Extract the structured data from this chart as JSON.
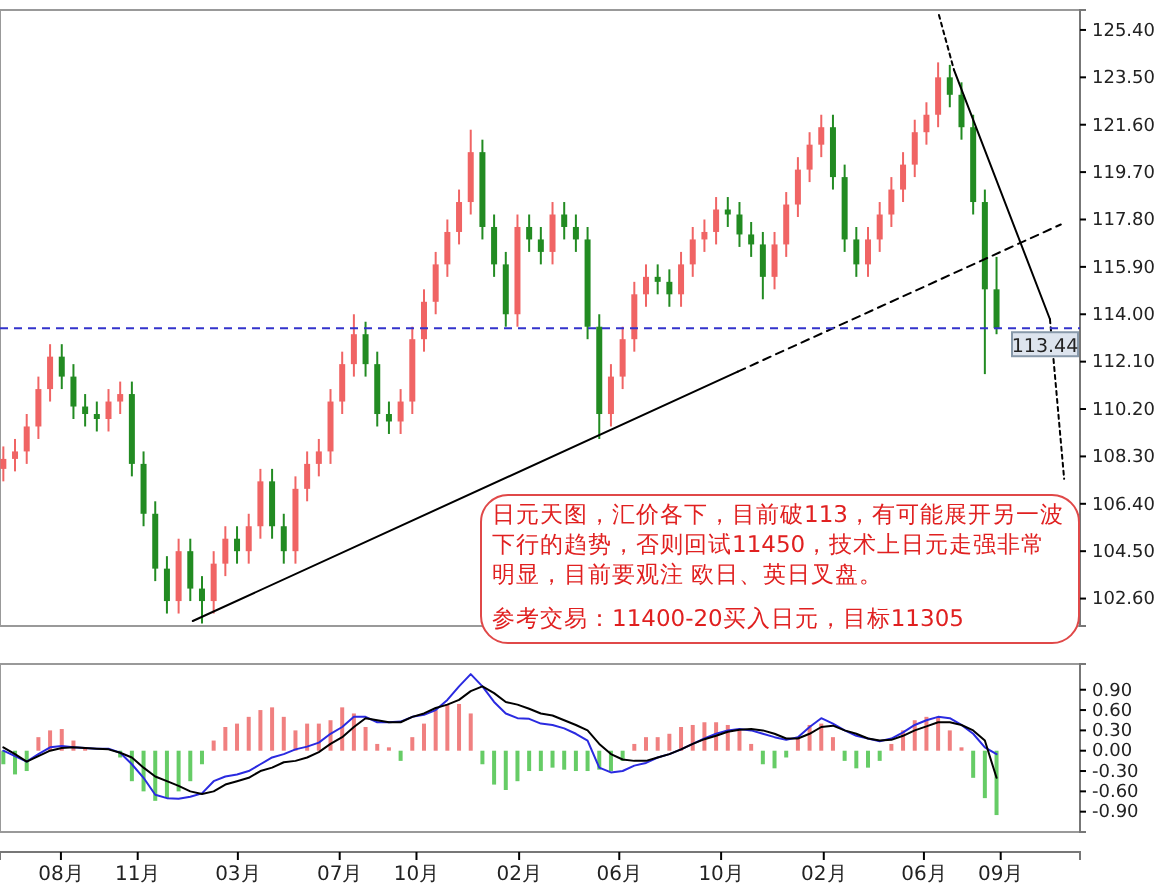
{
  "chart_data": [
    {
      "type": "candlestick",
      "x": [
        "2004-05-24",
        "2004-06-07",
        "2004-06-21",
        "2004-07-05",
        "2004-07-19",
        "2004-08-02",
        "2004-08-16",
        "2004-08-30",
        "2004-09-13",
        "2004-09-27",
        "2004-10-11",
        "2004-10-25",
        "2004-11-08",
        "2004-11-22",
        "2004-12-06",
        "2004-12-20",
        "2005-01-03",
        "2005-01-17",
        "2005-01-31",
        "2005-02-14",
        "2005-02-28",
        "2005-03-14",
        "2005-03-28",
        "2005-04-11",
        "2005-04-25",
        "2005-05-09",
        "2005-05-23",
        "2005-06-06",
        "2005-06-20",
        "2005-07-04",
        "2005-07-18",
        "2005-08-01",
        "2005-08-15",
        "2005-08-29",
        "2005-09-12",
        "2005-09-26",
        "2005-10-10",
        "2005-10-24",
        "2005-11-07",
        "2005-11-21",
        "2005-12-05",
        "2005-12-19",
        "2006-01-02",
        "2006-01-16",
        "2006-01-30",
        "2006-02-13",
        "2006-02-27",
        "2006-03-13",
        "2006-03-27",
        "2006-04-10",
        "2006-04-24",
        "2006-05-08",
        "2006-05-22",
        "2006-06-05",
        "2006-06-19",
        "2006-07-03",
        "2006-07-17",
        "2006-07-31",
        "2006-08-14",
        "2006-08-28",
        "2006-09-11",
        "2006-09-25",
        "2006-10-09",
        "2006-10-23",
        "2006-11-06",
        "2006-11-20",
        "2006-12-04",
        "2006-12-18",
        "2007-01-01",
        "2007-01-15",
        "2007-01-29",
        "2007-02-12",
        "2007-02-26",
        "2007-03-12",
        "2007-03-26",
        "2007-04-09",
        "2007-04-23",
        "2007-05-07",
        "2007-05-21",
        "2007-06-04",
        "2007-06-18",
        "2007-07-02",
        "2007-07-16",
        "2007-07-30",
        "2007-08-13",
        "2007-08-27"
      ],
      "ohlc": [
        [
          107.8,
          108.7,
          107.3,
          108.2
        ],
        [
          108.2,
          109.0,
          107.7,
          108.5
        ],
        [
          108.5,
          110.0,
          108.0,
          109.5
        ],
        [
          109.5,
          111.5,
          109.0,
          111
        ],
        [
          111,
          112.8,
          110.5,
          112.3
        ],
        [
          112.3,
          112.8,
          111.0,
          111.5
        ],
        [
          111.5,
          112.0,
          109.8,
          110.3
        ],
        [
          110.3,
          110.8,
          109.5,
          110
        ],
        [
          110,
          110.5,
          109.3,
          109.8
        ],
        [
          109.8,
          111.0,
          109.3,
          110.5
        ],
        [
          110.5,
          111.3,
          110.0,
          110.8
        ],
        [
          110.8,
          111.3,
          107.5,
          108
        ],
        [
          108,
          108.5,
          105.5,
          106
        ],
        [
          106,
          106.5,
          103.3,
          103.8
        ],
        [
          103.8,
          104.3,
          102.0,
          102.5
        ],
        [
          102.5,
          105.0,
          102.0,
          104.5
        ],
        [
          104.5,
          105.0,
          102.5,
          103
        ],
        [
          103,
          103.5,
          101.6,
          102.5
        ],
        [
          102.5,
          104.5,
          102.0,
          104
        ],
        [
          104,
          105.5,
          103.5,
          105
        ],
        [
          105,
          105.5,
          104.0,
          104.5
        ],
        [
          104.5,
          106.0,
          104.0,
          105.5
        ],
        [
          105.5,
          107.8,
          105.0,
          107.3
        ],
        [
          107.3,
          107.8,
          105.0,
          105.5
        ],
        [
          105.5,
          106.0,
          104.0,
          104.5
        ],
        [
          104.5,
          107.5,
          104.0,
          107
        ],
        [
          107,
          108.5,
          106.5,
          108
        ],
        [
          108,
          109.0,
          107.5,
          108.5
        ],
        [
          108.5,
          111.0,
          108.0,
          110.5
        ],
        [
          110.5,
          112.5,
          110.0,
          112
        ],
        [
          112,
          114.0,
          111.5,
          113.2
        ],
        [
          113.2,
          113.7,
          111.5,
          112
        ],
        [
          112,
          112.5,
          109.5,
          110
        ],
        [
          110,
          110.5,
          109.2,
          109.7
        ],
        [
          109.7,
          111.0,
          109.2,
          110.5
        ],
        [
          110.5,
          113.5,
          110.0,
          113
        ],
        [
          113,
          115.0,
          112.5,
          114.5
        ],
        [
          114.5,
          116.5,
          114.0,
          116
        ],
        [
          116,
          117.8,
          115.5,
          117.3
        ],
        [
          117.3,
          119.0,
          116.8,
          118.5
        ],
        [
          118.5,
          121.4,
          118.0,
          120.5
        ],
        [
          120.5,
          121.0,
          117.0,
          117.5
        ],
        [
          117.5,
          118.0,
          115.5,
          116
        ],
        [
          116,
          116.5,
          113.5,
          114
        ],
        [
          114,
          118.0,
          113.5,
          117.5
        ],
        [
          117.5,
          118.0,
          116.5,
          117
        ],
        [
          117,
          117.5,
          116.0,
          116.5
        ],
        [
          116.5,
          118.5,
          116.0,
          118
        ],
        [
          118,
          118.5,
          117.0,
          117.5
        ],
        [
          117.5,
          118.0,
          116.5,
          117
        ],
        [
          117,
          117.5,
          113.0,
          113.5
        ],
        [
          113.5,
          114.0,
          109.0,
          110
        ],
        [
          110,
          112.0,
          109.5,
          111.5
        ],
        [
          111.5,
          113.5,
          111.0,
          113
        ],
        [
          113,
          115.3,
          112.5,
          114.8
        ],
        [
          114.8,
          116.0,
          114.3,
          115.5
        ],
        [
          115.5,
          116.0,
          114.8,
          115.3
        ],
        [
          115.3,
          115.8,
          114.3,
          114.8
        ],
        [
          114.8,
          116.5,
          114.3,
          116
        ],
        [
          116,
          117.5,
          115.5,
          117
        ],
        [
          117,
          117.8,
          116.5,
          117.3
        ],
        [
          117.3,
          118.7,
          116.8,
          118.2
        ],
        [
          118.2,
          118.7,
          117.5,
          118
        ],
        [
          118,
          118.5,
          116.7,
          117.2
        ],
        [
          117.2,
          117.7,
          116.3,
          116.8
        ],
        [
          116.8,
          117.3,
          114.6,
          115.5
        ],
        [
          115.5,
          117.3,
          115.0,
          116.8
        ],
        [
          116.8,
          118.9,
          116.3,
          118.4
        ],
        [
          118.4,
          120.3,
          117.9,
          119.8
        ],
        [
          119.8,
          121.3,
          119.3,
          120.8
        ],
        [
          120.8,
          122.0,
          120.3,
          121.5
        ],
        [
          121.5,
          122.0,
          119.0,
          119.5
        ],
        [
          119.5,
          120.0,
          116.5,
          117
        ],
        [
          117,
          117.5,
          115.5,
          116
        ],
        [
          116,
          117.5,
          115.5,
          117
        ],
        [
          117,
          118.5,
          116.5,
          118
        ],
        [
          118,
          119.5,
          117.5,
          119
        ],
        [
          119,
          120.5,
          118.5,
          120
        ],
        [
          120,
          121.8,
          119.5,
          121.3
        ],
        [
          121.3,
          122.5,
          120.8,
          122
        ],
        [
          122,
          124.1,
          121.5,
          123.5
        ],
        [
          123.5,
          124.0,
          122.3,
          122.8
        ],
        [
          122.8,
          123.3,
          121.0,
          121.5
        ],
        [
          121.5,
          122.0,
          118.0,
          118.5
        ],
        [
          118.5,
          119.0,
          111.6,
          115
        ],
        [
          115,
          116.3,
          113.2,
          113.44
        ]
      ],
      "colors": [
        "#f06464",
        "#f06464",
        "#f06464",
        "#f06464",
        "#f06464",
        "#228b22",
        "#228b22",
        "#228b22",
        "#228b22",
        "#f06464",
        "#f06464",
        "#228b22",
        "#228b22",
        "#228b22",
        "#228b22",
        "#f06464",
        "#228b22",
        "#228b22",
        "#f06464",
        "#f06464",
        "#228b22",
        "#f06464",
        "#f06464",
        "#228b22",
        "#228b22",
        "#f06464",
        "#f06464",
        "#f06464",
        "#f06464",
        "#f06464",
        "#f06464",
        "#228b22",
        "#228b22",
        "#228b22",
        "#f06464",
        "#f06464",
        "#f06464",
        "#f06464",
        "#f06464",
        "#f06464",
        "#f06464",
        "#228b22",
        "#228b22",
        "#228b22",
        "#f06464",
        "#228b22",
        "#228b22",
        "#f06464",
        "#228b22",
        "#228b22",
        "#228b22",
        "#228b22",
        "#f06464",
        "#f06464",
        "#f06464",
        "#f06464",
        "#228b22",
        "#228b22",
        "#f06464",
        "#f06464",
        "#f06464",
        "#f06464",
        "#228b22",
        "#228b22",
        "#228b22",
        "#228b22",
        "#f06464",
        "#f06464",
        "#f06464",
        "#f06464",
        "#f06464",
        "#228b22",
        "#228b22",
        "#228b22",
        "#f06464",
        "#f06464",
        "#f06464",
        "#f06464",
        "#f06464",
        "#f06464",
        "#f06464",
        "#228b22",
        "#228b22",
        "#228b22",
        "#228b22",
        "#228b22"
      ],
      "series": [
        {
          "type": "line",
          "x": [
            "2005-01-06",
            "2006-10-21"
          ],
          "values": [
            101.7,
            111.7
          ],
          "color": "#000000",
          "line_style": "solid"
        },
        {
          "type": "line",
          "x": [
            "2006-10-21",
            "2007-11-12"
          ],
          "values": [
            111.7,
            117.6
          ],
          "color": "#000000",
          "line_style": "dashed"
        },
        {
          "type": "line",
          "x": [
            "2007-06-19",
            "2007-07-07"
          ],
          "values": [
            126.0,
            123.8
          ],
          "color": "#000000",
          "line_style": "dotted"
        },
        {
          "type": "line",
          "x": [
            "2007-07-07",
            "2007-10-30"
          ],
          "values": [
            123.8,
            113.8
          ],
          "color": "#000000",
          "line_style": "solid"
        },
        {
          "type": "line",
          "x": [
            "2007-10-30",
            "2007-11-16"
          ],
          "values": [
            113.8,
            107.4
          ],
          "color": "#000000",
          "line_style": "dotted"
        }
      ],
      "xlim": [
        "2004-05-20",
        "2007-12-05"
      ],
      "ylim": [
        101.5,
        126.2
      ],
      "yticks": [
        {
          "value": 102.6,
          "label": "102.60"
        },
        {
          "value": 104.5,
          "label": "104.50"
        },
        {
          "value": 106.4,
          "label": "106.40"
        },
        {
          "value": 108.3,
          "label": "108.30"
        },
        {
          "value": 110.2,
          "label": "110.20"
        },
        {
          "value": 112.1,
          "label": "112.10"
        },
        {
          "value": 114,
          "label": "114.00"
        },
        {
          "value": 115.9,
          "label": "115.90"
        },
        {
          "value": 117.8,
          "label": "117.80"
        },
        {
          "value": 119.7,
          "label": "119.70"
        },
        {
          "value": 121.6,
          "label": "121.60"
        },
        {
          "value": 123.5,
          "label": "123.50"
        },
        {
          "value": 125.4,
          "label": "125.40"
        }
      ],
      "tick_labels": "y",
      "ref_lines": [
        {
          "axis": "y",
          "value": 113.44,
          "label": "113.44",
          "color": "#3333cc",
          "line_style": "dashed"
        }
      ],
      "annotations": [
        "日元天图，汇价各下，目前破113，有可能展开另一波下行的趋势，否则回试11450，技术上日元走强非常明显，目前要观注 欧日、英日叉盘。",
        "参考交易：11400-20买入日元，目标11305"
      ]
    },
    {
      "type": "bar",
      "x": [
        "2004-05-24",
        "2004-06-07",
        "2004-06-21",
        "2004-07-05",
        "2004-07-19",
        "2004-08-02",
        "2004-08-16",
        "2004-08-30",
        "2004-09-13",
        "2004-09-27",
        "2004-10-11",
        "2004-10-25",
        "2004-11-08",
        "2004-11-22",
        "2004-12-06",
        "2004-12-20",
        "2005-01-03",
        "2005-01-17",
        "2005-01-31",
        "2005-02-14",
        "2005-02-28",
        "2005-03-14",
        "2005-03-28",
        "2005-04-11",
        "2005-04-25",
        "2005-05-09",
        "2005-05-23",
        "2005-06-06",
        "2005-06-20",
        "2005-07-04",
        "2005-07-18",
        "2005-08-01",
        "2005-08-15",
        "2005-08-29",
        "2005-09-12",
        "2005-09-26",
        "2005-10-10",
        "2005-10-24",
        "2005-11-07",
        "2005-11-21",
        "2005-12-05",
        "2005-12-19",
        "2006-01-02",
        "2006-01-16",
        "2006-01-30",
        "2006-02-13",
        "2006-02-27",
        "2006-03-13",
        "2006-03-27",
        "2006-04-10",
        "2006-04-24",
        "2006-05-08",
        "2006-05-22",
        "2006-06-05",
        "2006-06-19",
        "2006-07-03",
        "2006-07-17",
        "2006-07-31",
        "2006-08-14",
        "2006-08-28",
        "2006-09-11",
        "2006-09-25",
        "2006-10-09",
        "2006-10-23",
        "2006-11-06",
        "2006-11-20",
        "2006-12-04",
        "2006-12-18",
        "2007-01-01",
        "2007-01-15",
        "2007-01-29",
        "2007-02-12",
        "2007-02-26",
        "2007-03-12",
        "2007-03-26",
        "2007-04-09",
        "2007-04-23",
        "2007-05-07",
        "2007-05-21",
        "2007-06-04",
        "2007-06-18",
        "2007-07-02",
        "2007-07-16",
        "2007-07-30",
        "2007-08-13",
        "2007-08-27"
      ],
      "series": [
        {
          "type": "bar",
          "values": [
            -0.2,
            -0.35,
            -0.3,
            0.2,
            0.3,
            0.32,
            0.15,
            0.03,
            null,
            null,
            -0.1,
            -0.45,
            -0.6,
            -0.74,
            -0.7,
            -0.6,
            -0.45,
            -0.2,
            0.15,
            0.35,
            0.4,
            0.5,
            0.6,
            0.64,
            0.5,
            0.3,
            0.4,
            0.4,
            0.45,
            0.64,
            0.55,
            0.35,
            0.1,
            0.05,
            -0.15,
            0.2,
            0.4,
            0.6,
            0.68,
            0.69,
            0.55,
            -0.2,
            -0.5,
            -0.58,
            -0.45,
            -0.3,
            -0.3,
            -0.25,
            -0.28,
            -0.3,
            -0.3,
            -0.28,
            -0.3,
            -0.15,
            0.1,
            0.2,
            0.2,
            0.25,
            0.35,
            0.38,
            0.42,
            0.42,
            0.38,
            0.3,
            0.1,
            -0.2,
            -0.26,
            -0.1,
            0.2,
            0.38,
            0.4,
            0.2,
            -0.15,
            -0.26,
            -0.25,
            -0.15,
            0.1,
            0.3,
            0.45,
            0.5,
            0.5,
            0.3,
            0.05,
            -0.4,
            -0.7,
            -0.95
          ],
          "colors": [
            "#66cc66",
            "#66cc66",
            "#66cc66",
            "#f08080",
            "#f08080",
            "#f08080",
            "#f08080",
            "#f08080",
            null,
            null,
            "#66cc66",
            "#66cc66",
            "#66cc66",
            "#66cc66",
            "#66cc66",
            "#66cc66",
            "#66cc66",
            "#66cc66",
            "#f08080",
            "#f08080",
            "#f08080",
            "#f08080",
            "#f08080",
            "#f08080",
            "#f08080",
            "#f08080",
            "#f08080",
            "#f08080",
            "#f08080",
            "#f08080",
            "#f08080",
            "#f08080",
            "#f08080",
            "#f08080",
            "#66cc66",
            "#f08080",
            "#f08080",
            "#f08080",
            "#f08080",
            "#f08080",
            "#f08080",
            "#66cc66",
            "#66cc66",
            "#66cc66",
            "#66cc66",
            "#66cc66",
            "#66cc66",
            "#66cc66",
            "#66cc66",
            "#66cc66",
            "#66cc66",
            "#66cc66",
            "#66cc66",
            "#66cc66",
            "#f08080",
            "#f08080",
            "#f08080",
            "#f08080",
            "#f08080",
            "#f08080",
            "#f08080",
            "#f08080",
            "#f08080",
            "#f08080",
            "#f08080",
            "#66cc66",
            "#66cc66",
            "#66cc66",
            "#f08080",
            "#f08080",
            "#f08080",
            "#f08080",
            "#66cc66",
            "#66cc66",
            "#66cc66",
            "#66cc66",
            "#f08080",
            "#f08080",
            "#f08080",
            "#f08080",
            "#f08080",
            "#f08080",
            "#f08080",
            "#66cc66",
            "#66cc66",
            "#66cc66"
          ]
        },
        {
          "type": "line",
          "color": "#2a2ae0",
          "values": [
            0.0,
            -0.08,
            -0.16,
            -0.05,
            0.05,
            0.07,
            0.05,
            0.04,
            0.03,
            0.03,
            -0.03,
            -0.2,
            -0.4,
            -0.65,
            -0.7,
            -0.71,
            -0.68,
            -0.63,
            -0.45,
            -0.38,
            -0.35,
            -0.3,
            -0.2,
            -0.1,
            -0.05,
            0.02,
            0.06,
            0.12,
            0.25,
            0.35,
            0.5,
            0.5,
            0.42,
            0.42,
            0.43,
            0.5,
            0.53,
            0.6,
            0.75,
            0.95,
            1.13,
            0.95,
            0.72,
            0.55,
            0.48,
            0.47,
            0.4,
            0.38,
            0.33,
            0.25,
            0.15,
            -0.25,
            -0.32,
            -0.3,
            -0.22,
            -0.18,
            -0.1,
            -0.05,
            0.02,
            0.1,
            0.18,
            0.25,
            0.3,
            0.32,
            0.3,
            0.25,
            0.2,
            0.16,
            0.2,
            0.35,
            0.48,
            0.4,
            0.3,
            0.22,
            0.18,
            0.14,
            0.18,
            0.27,
            0.38,
            0.45,
            0.5,
            0.48,
            0.38,
            0.25,
            0.05,
            -0.05
          ]
        },
        {
          "type": "line",
          "color": "#000000",
          "values": [
            0.05,
            -0.05,
            -0.16,
            -0.08,
            0.0,
            0.04,
            0.05,
            0.04,
            0.03,
            0.02,
            -0.03,
            -0.1,
            -0.25,
            -0.38,
            -0.45,
            -0.52,
            -0.6,
            -0.64,
            -0.6,
            -0.5,
            -0.45,
            -0.4,
            -0.3,
            -0.25,
            -0.17,
            -0.15,
            -0.1,
            -0.02,
            0.1,
            0.2,
            0.35,
            0.48,
            0.45,
            0.42,
            0.42,
            0.5,
            0.55,
            0.63,
            0.68,
            0.75,
            0.88,
            0.95,
            0.85,
            0.72,
            0.68,
            0.62,
            0.55,
            0.52,
            0.45,
            0.38,
            0.3,
            0.1,
            -0.05,
            -0.13,
            -0.15,
            -0.15,
            -0.1,
            -0.05,
            0.02,
            0.1,
            0.17,
            0.22,
            0.28,
            0.31,
            0.32,
            0.3,
            0.25,
            0.18,
            0.18,
            0.25,
            0.35,
            0.37,
            0.3,
            0.25,
            0.18,
            0.15,
            0.16,
            0.22,
            0.3,
            0.36,
            0.42,
            0.42,
            0.38,
            0.3,
            0.15,
            -0.4
          ]
        }
      ],
      "xlim": [
        "2004-05-20",
        "2007-12-05"
      ],
      "xticks": [
        {
          "value": "2004-08-01",
          "label": "08月"
        },
        {
          "value": "2004-11-01",
          "label": "11月"
        },
        {
          "value": "2005-03-01",
          "label": "03月"
        },
        {
          "value": "2005-07-01",
          "label": "07月"
        },
        {
          "value": "2005-10-01",
          "label": "10月"
        },
        {
          "value": "2006-02-01",
          "label": "02月"
        },
        {
          "value": "2006-06-01",
          "label": "06月"
        },
        {
          "value": "2006-10-01",
          "label": "10月"
        },
        {
          "value": "2007-02-01",
          "label": "02月"
        },
        {
          "value": "2007-06-01",
          "label": "06月"
        },
        {
          "value": "2007-09-01",
          "label": "09月"
        }
      ],
      "ylim": [
        -1.2,
        1.28
      ],
      "yticks": [
        {
          "value": -0.9,
          "label": "-0.90"
        },
        {
          "value": -0.6,
          "label": "-0.60"
        },
        {
          "value": -0.3,
          "label": "-0.30"
        },
        {
          "value": 0,
          "label": "0.00"
        },
        {
          "value": 0.3,
          "label": "0.30"
        },
        {
          "value": 0.6,
          "label": "0.60"
        },
        {
          "value": 0.9,
          "label": "0.90"
        }
      ]
    }
  ]
}
